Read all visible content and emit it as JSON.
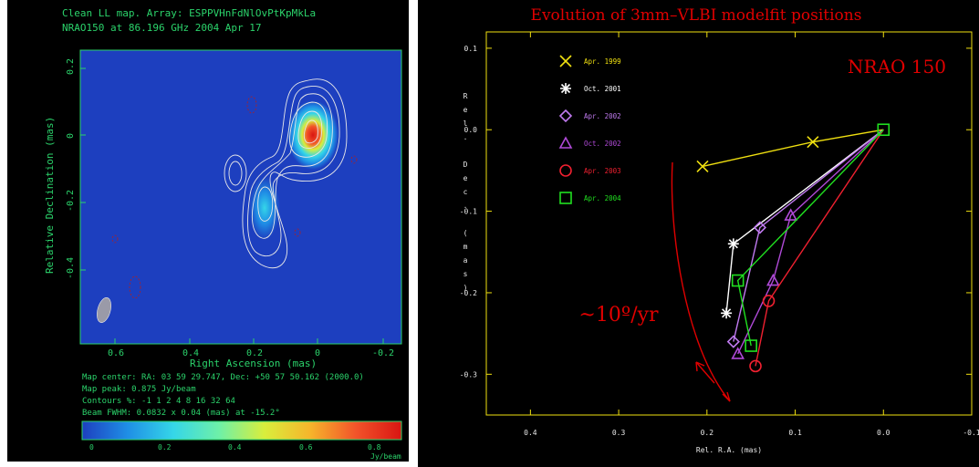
{
  "left": {
    "title_line1": "Clean LL map.  Array: ESPPVHnFdNlOvPtKpMkLa",
    "title_line2": "NRAO150 at 86.196 GHz 2004 Apr 17",
    "ylabel": "Relative Declination   (mas)",
    "xlabel": "Right Ascension   (mas)",
    "info": [
      "Map center:  RA: 03 59 29.747,  Dec: +50 57 50.162 (2000.0)",
      "Map peak: 0.875 Jy/beam",
      "Contours %: -1 1 2 4 8 16 32 64",
      "Beam FWHM: 0.0832 x 0.04 (mas) at -15.2°"
    ],
    "colorbar_ticks": [
      "0",
      "0.2",
      "0.4",
      "0.6",
      "0.8"
    ],
    "colorbar_unit": "Jy/beam",
    "colormap": [
      "#1d3fbf",
      "#1f8fe6",
      "#35d6e8",
      "#6ef0a8",
      "#d9ee3c",
      "#f6b52b",
      "#f2542a",
      "#d91512"
    ]
  },
  "chart_data": {
    "type": "line",
    "title": "Evolution of 3mm–VLBI modelfit positions",
    "source_label": "NRAO 150",
    "annotation": "~10º/yr",
    "xlabel": "Rel. R.A. (mas)",
    "ylabel": "Rel. Dec. (mas)",
    "xlim": [
      0.45,
      -0.1
    ],
    "ylim": [
      -0.35,
      0.12
    ],
    "x_ticks": [
      {
        "v": 0.4,
        "label": "0.4"
      },
      {
        "v": 0.3,
        "label": "0.3"
      },
      {
        "v": 0.2,
        "label": "0.2"
      },
      {
        "v": 0.1,
        "label": "0.1"
      },
      {
        "v": 0.0,
        "label": "0.0"
      },
      {
        "v": -0.1,
        "label": "-0.1"
      }
    ],
    "y_ticks": [
      {
        "v": 0.1,
        "label": "0.1"
      },
      {
        "v": 0.0,
        "label": "0.0"
      },
      {
        "v": -0.1,
        "label": "-0.1"
      },
      {
        "v": -0.2,
        "label": "-0.2"
      },
      {
        "v": -0.3,
        "label": "-0.3"
      }
    ],
    "series": [
      {
        "name": "Apr. 1999",
        "color": "#f0e010",
        "marker": "x",
        "points": [
          {
            "x": 0.0,
            "y": 0.0
          },
          {
            "x": 0.08,
            "y": -0.015
          },
          {
            "x": 0.205,
            "y": -0.045
          }
        ]
      },
      {
        "name": "Oct. 2001",
        "color": "#ffffff",
        "marker": "asterisk",
        "points": [
          {
            "x": 0.0,
            "y": 0.0
          },
          {
            "x": 0.17,
            "y": -0.14
          },
          {
            "x": 0.178,
            "y": -0.225
          }
        ]
      },
      {
        "name": "Apr. 2002",
        "color": "#c07af0",
        "marker": "diamond",
        "points": [
          {
            "x": 0.0,
            "y": 0.0
          },
          {
            "x": 0.14,
            "y": -0.12
          },
          {
            "x": 0.17,
            "y": -0.26
          }
        ]
      },
      {
        "name": "Oct. 2002",
        "color": "#b04ad8",
        "marker": "triangle",
        "points": [
          {
            "x": 0.0,
            "y": 0.0
          },
          {
            "x": 0.105,
            "y": -0.105
          },
          {
            "x": 0.125,
            "y": -0.185
          },
          {
            "x": 0.165,
            "y": -0.275
          }
        ]
      },
      {
        "name": "Apr. 2003",
        "color": "#f02030",
        "marker": "circle",
        "points": [
          {
            "x": 0.0,
            "y": 0.0
          },
          {
            "x": 0.13,
            "y": -0.21
          },
          {
            "x": 0.145,
            "y": -0.29
          }
        ]
      },
      {
        "name": "Apr. 2004",
        "color": "#20e020",
        "marker": "square",
        "points": [
          {
            "x": 0.0,
            "y": 0.0
          },
          {
            "x": 0.165,
            "y": -0.185
          },
          {
            "x": 0.15,
            "y": -0.265
          }
        ]
      }
    ]
  }
}
